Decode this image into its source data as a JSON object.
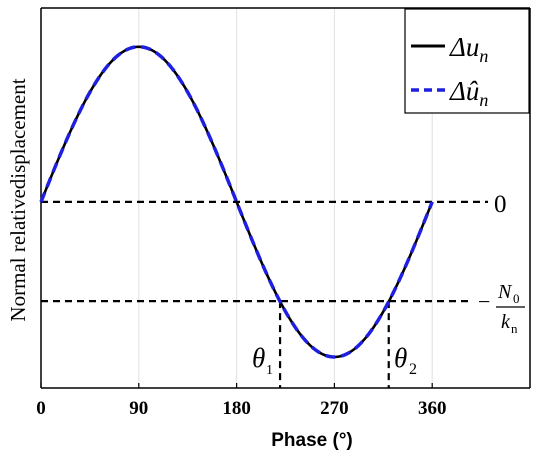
{
  "chart_data": {
    "type": "line",
    "title": "",
    "xlabel": "Phase (°)",
    "ylabel": "Normal relativedisplacement",
    "xlim": [
      0,
      450
    ],
    "ylim": [
      -1.2,
      1.25
    ],
    "xticks": [
      0,
      90,
      180,
      270,
      360
    ],
    "grid": "vertical",
    "legend_position": "top-right",
    "series": [
      {
        "name": "Δu_n",
        "style": "solid",
        "color": "#000000",
        "x": [
          0,
          30,
          60,
          90,
          120,
          150,
          180,
          210,
          240,
          270,
          300,
          330,
          360
        ],
        "y": [
          0,
          0.5,
          0.866,
          1,
          0.866,
          0.5,
          0,
          -0.5,
          -0.866,
          -1,
          -0.866,
          -0.5,
          0
        ]
      },
      {
        "name": "Δû_n",
        "style": "dashed",
        "color": "#1f1fe0",
        "x": [
          0,
          30,
          60,
          90,
          120,
          150,
          180,
          210,
          240,
          270,
          300,
          330,
          360
        ],
        "y": [
          0,
          0.5,
          0.866,
          1,
          0.866,
          0.5,
          0,
          -0.5,
          -0.866,
          -1,
          -0.866,
          -0.5,
          0
        ]
      }
    ],
    "reference_lines": {
      "zero_label": "0",
      "threshold_value": -0.64,
      "threshold_label_num": "N",
      "threshold_label_num_sub": "0",
      "threshold_label_den": "k",
      "threshold_label_den_sub": "n",
      "threshold_label_sign": "−"
    },
    "annotations": {
      "theta1_x": 220,
      "theta1_label": "θ",
      "theta1_sub": "1",
      "theta2_x": 320,
      "theta2_label": "θ",
      "theta2_sub": "2"
    },
    "legend": {
      "entry1_main": "Δu",
      "entry1_sub": "n",
      "entry2_main": "Δû",
      "entry2_sub": "n"
    }
  }
}
